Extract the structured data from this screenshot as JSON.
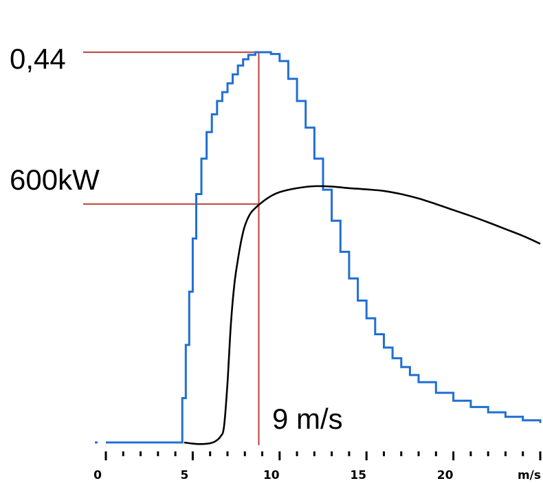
{
  "chart_data": {
    "type": "line",
    "xlabel": "m/s",
    "xlim": [
      0,
      25
    ],
    "x_ticks": [
      "0",
      "5",
      "10",
      "15",
      "20"
    ],
    "grid": false,
    "legend": "none",
    "annotations": {
      "peak_value": "0,44",
      "power_value": "600kW",
      "speed_value": "9 m/s"
    },
    "series": [
      {
        "color": "#1f6fd1",
        "x": [
          0.0,
          4.4,
          4.4,
          4.6,
          4.8,
          5.0,
          5.2,
          5.5,
          5.8,
          6.1,
          6.4,
          6.7,
          7.0,
          7.3,
          7.6,
          7.9,
          8.2,
          8.6,
          9.0,
          9.5,
          10.0,
          10.5,
          11.0,
          11.5,
          12.0,
          12.5,
          13.0,
          13.5,
          14.0,
          14.5,
          15.0,
          15.5,
          16.0,
          16.5,
          17.0,
          17.5,
          18.0,
          19.0,
          20.0,
          21.0,
          22.0,
          23.0,
          24.0,
          25.0
        ],
        "y": [
          0.0,
          0.0,
          0.05,
          0.11,
          0.17,
          0.23,
          0.28,
          0.32,
          0.35,
          0.37,
          0.385,
          0.395,
          0.405,
          0.415,
          0.425,
          0.432,
          0.437,
          0.44,
          0.44,
          0.438,
          0.43,
          0.41,
          0.385,
          0.355,
          0.32,
          0.285,
          0.25,
          0.215,
          0.185,
          0.16,
          0.14,
          0.122,
          0.107,
          0.095,
          0.085,
          0.076,
          0.068,
          0.056,
          0.047,
          0.04,
          0.034,
          0.029,
          0.025,
          0.022
        ]
      },
      {
        "color": "#000000",
        "x": [
          4.5,
          5.0,
          5.5,
          6.0,
          6.3,
          6.6,
          6.8,
          7.0,
          7.2,
          7.4,
          7.6,
          7.8,
          8.0,
          8.3,
          8.6,
          9.0,
          9.5,
          10.0,
          11.0,
          12.0,
          13.0,
          14.0,
          15.0,
          16.0,
          17.0,
          18.0,
          19.0,
          20.0,
          21.0,
          22.0,
          23.0,
          24.0,
          25.0
        ],
        "y": [
          0,
          -3,
          -4,
          -2,
          3,
          15,
          40,
          150,
          300,
          400,
          460,
          510,
          545,
          575,
          590,
          605,
          620,
          630,
          640,
          645,
          644,
          640,
          637,
          633,
          625,
          614,
          600,
          585,
          570,
          554,
          537,
          520,
          500
        ]
      }
    ],
    "reference_lines": {
      "peak_value": 0.44,
      "power_value": 600,
      "speed_value": 8.8
    }
  }
}
